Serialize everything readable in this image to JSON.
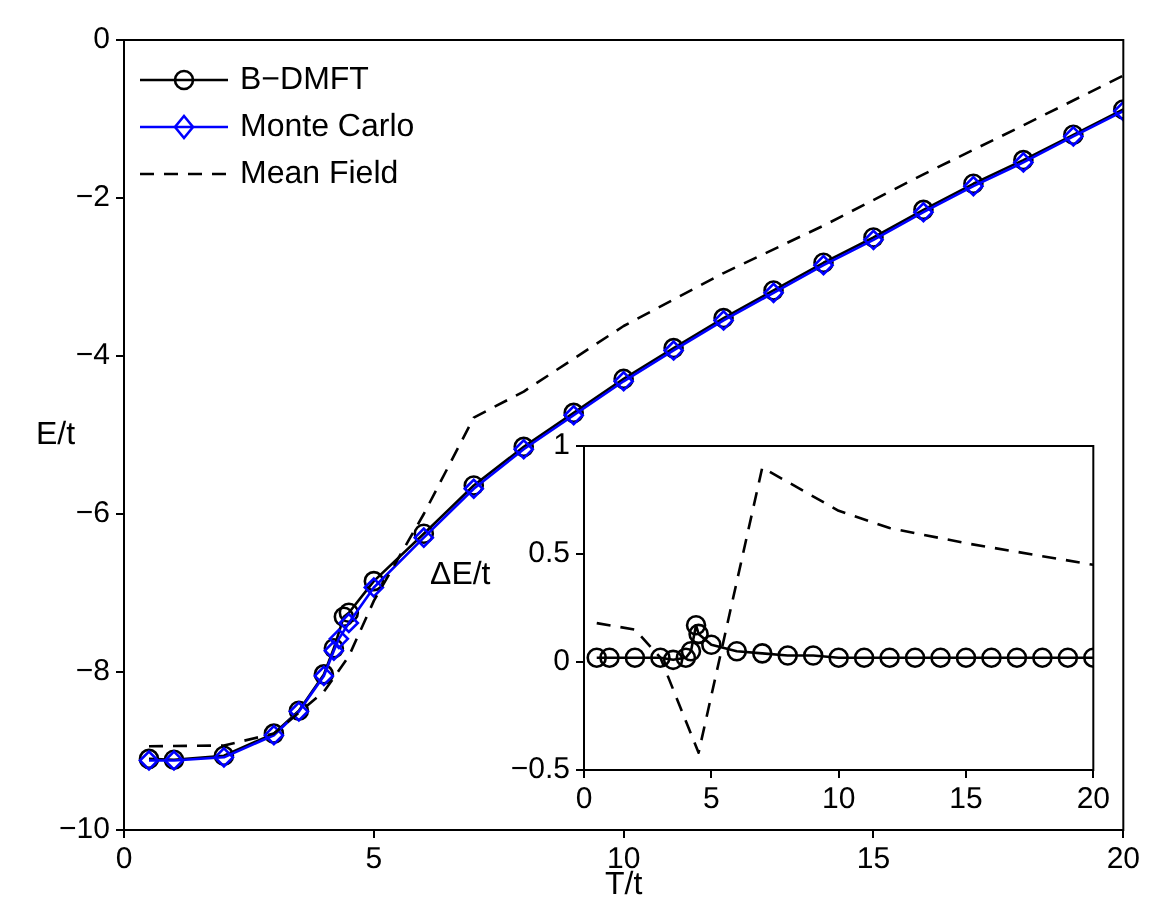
{
  "chart_data": [
    {
      "type": "line",
      "xlabel": "T/t",
      "ylabel": "E/t",
      "xlim": [
        0,
        20
      ],
      "xticks": [
        0,
        5,
        10,
        15,
        20
      ],
      "ylim": [
        -10,
        0
      ],
      "yticks": [
        -10,
        -8,
        -6,
        -4,
        -2,
        0
      ],
      "grid": false,
      "legend": "top left",
      "series": [
        {
          "name": "B−DMFT",
          "color": "#000000",
          "marker": "circle",
          "line_style": "solid",
          "x": [
            0.5,
            1,
            2,
            3,
            3.5,
            4,
            4.2,
            4.4,
            4.5,
            5,
            6,
            7,
            8,
            9,
            10,
            11,
            12,
            13,
            14,
            15,
            16,
            17,
            18,
            19,
            20
          ],
          "values": [
            -9.1,
            -9.11,
            -9.06,
            -8.78,
            -8.49,
            -8.03,
            -7.7,
            -7.3,
            -7.25,
            -6.85,
            -6.25,
            -5.64,
            -5.15,
            -4.72,
            -4.29,
            -3.9,
            -3.52,
            -3.17,
            -2.82,
            -2.5,
            -2.15,
            -1.82,
            -1.52,
            -1.2,
            -0.88
          ]
        },
        {
          "name": "Monte Carlo",
          "color": "#0000ff",
          "marker": "diamond",
          "line_style": "solid",
          "x": [
            0.5,
            1,
            2,
            3,
            3.5,
            4,
            4.2,
            4.3,
            4.5,
            5,
            6,
            7,
            8,
            9,
            10,
            11,
            12,
            13,
            14,
            15,
            16,
            17,
            18,
            19,
            20
          ],
          "values": [
            -9.12,
            -9.12,
            -9.08,
            -8.8,
            -8.5,
            -8.05,
            -7.73,
            -7.58,
            -7.38,
            -6.93,
            -6.3,
            -5.68,
            -5.18,
            -4.75,
            -4.32,
            -3.93,
            -3.55,
            -3.2,
            -2.85,
            -2.53,
            -2.18,
            -1.85,
            -1.55,
            -1.22,
            -0.9
          ]
        },
        {
          "name": "Mean Field",
          "color": "#000000",
          "marker": "none",
          "line_style": "dashed",
          "x": [
            0.5,
            2,
            3,
            4,
            4.5,
            5,
            6,
            7,
            8,
            10,
            12,
            14,
            16,
            18,
            20
          ],
          "values": [
            -8.94,
            -8.93,
            -8.78,
            -8.25,
            -7.8,
            -7.1,
            -6.0,
            -4.78,
            -4.45,
            -3.62,
            -2.95,
            -2.35,
            -1.7,
            -1.08,
            -0.45
          ]
        }
      ]
    },
    {
      "type": "line",
      "ylabel": "ΔE/t",
      "xlim": [
        0,
        20
      ],
      "xticks": [
        0,
        5,
        10,
        15,
        20
      ],
      "ylim": [
        -0.5,
        1
      ],
      "yticks": [
        -0.5,
        0,
        0.5,
        1
      ],
      "grid": false,
      "legend": false,
      "series": [
        {
          "color": "#000000",
          "marker": "circle",
          "line_style": "solid",
          "x": [
            0.5,
            1,
            2,
            3,
            3.5,
            4,
            4.2,
            4.4,
            4.5,
            5,
            6,
            7,
            8,
            9,
            10,
            11,
            12,
            13,
            14,
            15,
            16,
            17,
            18,
            19,
            20
          ],
          "values": [
            0.02,
            0.02,
            0.02,
            0.02,
            0.01,
            0.02,
            0.05,
            0.17,
            0.13,
            0.08,
            0.05,
            0.04,
            0.03,
            0.03,
            0.02,
            0.02,
            0.02,
            0.02,
            0.02,
            0.02,
            0.02,
            0.02,
            0.02,
            0.02,
            0.02
          ]
        },
        {
          "color": "#000000",
          "marker": "none",
          "line_style": "dashed",
          "x": [
            0.5,
            2,
            3,
            4.5,
            7,
            10,
            12,
            15,
            18,
            20
          ],
          "values": [
            0.18,
            0.15,
            0.02,
            -0.42,
            0.9,
            0.7,
            0.62,
            0.55,
            0.49,
            0.45
          ]
        }
      ]
    }
  ]
}
